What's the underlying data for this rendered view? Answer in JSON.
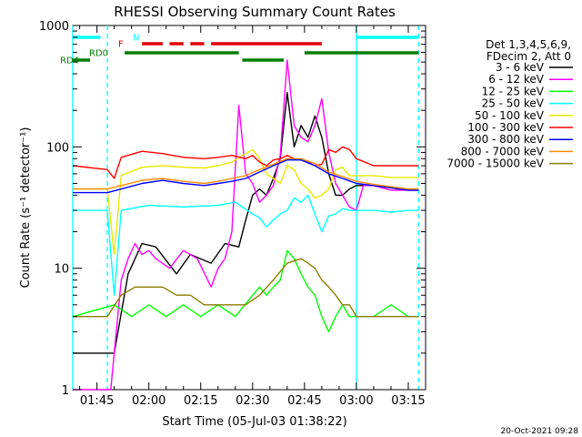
{
  "chart_data": {
    "type": "line",
    "title": "RHESSI Observing Summary Count Rates",
    "xlabel": "Start Time (05-Jul-03 01:38:22)",
    "ylabel": "Count Rate (s⁻¹ detector⁻¹)",
    "y_scale": "log",
    "ylim": [
      1,
      1000
    ],
    "xlim": [
      98,
      200
    ],
    "x_unit": "minutes after 00:00 UT, 05-Jul-03",
    "x_ticks": [
      {
        "value": 105,
        "label": "01:45"
      },
      {
        "value": 120,
        "label": "02:00"
      },
      {
        "value": 135,
        "label": "02:15"
      },
      {
        "value": 150,
        "label": "02:30"
      },
      {
        "value": 165,
        "label": "02:45"
      },
      {
        "value": 180,
        "label": "03:00"
      },
      {
        "value": 195,
        "label": "03:15"
      }
    ],
    "y_ticks": [
      {
        "value": 1,
        "label": "1"
      },
      {
        "value": 10,
        "label": "10"
      },
      {
        "value": 100,
        "label": "100"
      },
      {
        "value": 1000,
        "label": "1000"
      }
    ],
    "legend_position": "right",
    "legend_header": [
      "Det 1,3,4,5,6,9,",
      "FDecim 2, Att 0"
    ],
    "series": [
      {
        "name": "3 - 6 keV",
        "color": "#000000",
        "x": [
          98,
          110,
          114,
          118,
          122,
          128,
          132,
          138,
          142,
          146,
          148,
          150,
          152,
          154,
          156,
          158,
          160,
          162,
          164,
          166,
          168,
          170,
          172,
          174,
          176,
          178,
          180,
          185,
          190,
          195,
          198
        ],
        "y": [
          2,
          2,
          9,
          16,
          15,
          9,
          13,
          11,
          16,
          15,
          25,
          40,
          45,
          40,
          55,
          80,
          280,
          100,
          150,
          120,
          180,
          120,
          60,
          40,
          40,
          45,
          48,
          48,
          46,
          44,
          44
        ]
      },
      {
        "name": "6 - 12 keV",
        "color": "#ff00ff",
        "x": [
          98,
          109,
          110,
          112,
          114,
          116,
          118,
          120,
          122,
          126,
          130,
          134,
          138,
          140,
          142,
          144,
          146,
          148,
          150,
          152,
          154,
          156,
          158,
          160,
          162,
          164,
          166,
          168,
          170,
          172,
          174,
          176,
          178,
          180,
          182,
          185,
          190,
          195,
          198
        ],
        "y": [
          1,
          1,
          2,
          8,
          12,
          16,
          13,
          14,
          12,
          10,
          14,
          12,
          7,
          10,
          12,
          20,
          220,
          60,
          50,
          35,
          40,
          48,
          85,
          520,
          150,
          120,
          110,
          150,
          250,
          90,
          50,
          40,
          32,
          30,
          48,
          48,
          44,
          44,
          44
        ]
      },
      {
        "name": "12 - 25 keV",
        "color": "#00ff00",
        "x": [
          98,
          110,
          115,
          120,
          125,
          130,
          135,
          140,
          145,
          150,
          152,
          154,
          156,
          158,
          160,
          162,
          164,
          166,
          168,
          170,
          172,
          174,
          176,
          178,
          180,
          185,
          190,
          195,
          198
        ],
        "y": [
          4,
          5,
          4,
          5,
          4,
          5,
          4,
          5,
          4,
          6,
          7,
          6,
          7,
          8,
          14,
          12,
          9,
          7,
          6,
          4,
          3,
          4,
          5,
          4,
          4,
          4,
          5,
          4,
          4
        ]
      },
      {
        "name": "25 - 50 keV",
        "color": "#00ffff",
        "x": [
          98,
          108,
          110,
          112,
          120,
          130,
          140,
          145,
          150,
          152,
          154,
          156,
          158,
          160,
          162,
          164,
          166,
          168,
          170,
          172,
          174,
          176,
          178,
          180,
          185,
          190,
          195,
          198
        ],
        "y": [
          30,
          30,
          6,
          30,
          33,
          32,
          33,
          35,
          28,
          26,
          22,
          25,
          28,
          30,
          38,
          35,
          40,
          28,
          20,
          27,
          28,
          31,
          30,
          30,
          30,
          29,
          30,
          30
        ]
      },
      {
        "name": "50 - 100 keV",
        "color": "#e8e800",
        "x": [
          98,
          108,
          110,
          112,
          118,
          124,
          130,
          136,
          140,
          144,
          148,
          150,
          152,
          154,
          156,
          158,
          160,
          162,
          164,
          166,
          168,
          170,
          172,
          174,
          176,
          178,
          180,
          185,
          190,
          195,
          198
        ],
        "y": [
          45,
          45,
          13,
          58,
          68,
          70,
          68,
          67,
          70,
          75,
          88,
          95,
          80,
          60,
          55,
          50,
          70,
          65,
          50,
          45,
          38,
          40,
          45,
          65,
          68,
          58,
          58,
          58,
          56,
          56,
          56
        ]
      },
      {
        "name": "100 - 300 keV",
        "color": "#ff0000",
        "x": [
          98,
          108,
          110,
          112,
          118,
          124,
          130,
          136,
          140,
          144,
          148,
          150,
          152,
          154,
          156,
          158,
          160,
          162,
          164,
          166,
          168,
          170,
          172,
          174,
          176,
          178,
          180,
          185,
          190,
          195,
          198
        ],
        "y": [
          70,
          65,
          55,
          82,
          92,
          88,
          82,
          80,
          82,
          85,
          80,
          85,
          75,
          70,
          78,
          80,
          85,
          80,
          78,
          75,
          70,
          72,
          95,
          90,
          100,
          95,
          80,
          70,
          70,
          70,
          70
        ]
      },
      {
        "name": "300 - 800 keV",
        "color": "#0000ff",
        "x": [
          98,
          108,
          112,
          118,
          124,
          130,
          136,
          140,
          144,
          148,
          152,
          156,
          160,
          164,
          168,
          172,
          176,
          180,
          185,
          190,
          195,
          198
        ],
        "y": [
          42,
          42,
          45,
          50,
          53,
          50,
          48,
          50,
          52,
          55,
          62,
          70,
          78,
          78,
          70,
          60,
          55,
          50,
          48,
          46,
          44,
          44
        ]
      },
      {
        "name": "800 - 7000 keV",
        "color": "#ff8c00",
        "x": [
          98,
          108,
          112,
          118,
          124,
          130,
          136,
          140,
          144,
          148,
          152,
          156,
          160,
          164,
          168,
          172,
          176,
          180,
          185,
          190,
          195,
          198
        ],
        "y": [
          45,
          45,
          48,
          53,
          55,
          52,
          50,
          52,
          55,
          58,
          65,
          72,
          80,
          80,
          73,
          62,
          57,
          52,
          49,
          47,
          45,
          45
        ]
      },
      {
        "name": "7000 - 15000 keV",
        "color": "#8b7d00",
        "x": [
          98,
          108,
          112,
          116,
          120,
          124,
          128,
          132,
          136,
          140,
          144,
          148,
          152,
          156,
          160,
          164,
          166,
          168,
          170,
          172,
          174,
          176,
          178,
          180,
          185,
          190,
          195,
          198
        ],
        "y": [
          4,
          4,
          6,
          7,
          7,
          7,
          6,
          6,
          5,
          5,
          5,
          5,
          6,
          8,
          11,
          12,
          11,
          10,
          8,
          7,
          6,
          5,
          5,
          4,
          4,
          4,
          4,
          4
        ]
      }
    ],
    "flag_bars": [
      {
        "label": "N",
        "color": "#00ffff",
        "segments": [
          [
            98,
            106
          ],
          [
            180,
            198
          ]
        ]
      },
      {
        "label": "F",
        "color": "#e00000",
        "segments": [
          [
            118,
            124
          ],
          [
            126,
            130
          ],
          [
            132,
            136
          ],
          [
            138,
            170
          ]
        ]
      },
      {
        "label": "RD0",
        "color": "#007f00",
        "segments": [
          [
            113,
            146
          ],
          [
            165,
            198
          ]
        ]
      },
      {
        "label": "RD4",
        "color": "#007f00",
        "segments": [
          [
            98,
            103
          ],
          [
            147,
            159
          ]
        ]
      }
    ],
    "vertical_markers": [
      {
        "x": 98,
        "color": "#00ffff",
        "style": "solid"
      },
      {
        "x": 108,
        "color": "#00ffff",
        "style": "dashed"
      },
      {
        "x": 180,
        "color": "#00ffff",
        "style": "solid"
      },
      {
        "x": 198,
        "color": "#00ffff",
        "style": "dashed"
      }
    ]
  },
  "footer": {
    "timestamp": "20-Oct-2021 09:28"
  }
}
